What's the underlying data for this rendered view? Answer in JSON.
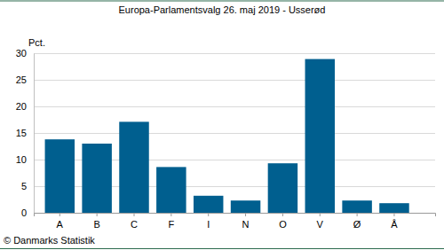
{
  "chart_data": {
    "type": "bar",
    "title": "Europa-Parlamentsvalg 26. maj 2019 - Usserød",
    "y_label": "Pct.",
    "source": "© Danmarks Statistik",
    "categories": [
      "A",
      "B",
      "C",
      "F",
      "I",
      "N",
      "O",
      "V",
      "Ø",
      "Å"
    ],
    "values": [
      13.8,
      13.0,
      17.1,
      8.6,
      3.2,
      2.3,
      9.3,
      28.9,
      2.3,
      1.8
    ],
    "color": "#005f8f",
    "ylim": [
      0,
      30
    ],
    "yticks": [
      0,
      5,
      10,
      15,
      20,
      25,
      30
    ],
    "grid": true
  }
}
